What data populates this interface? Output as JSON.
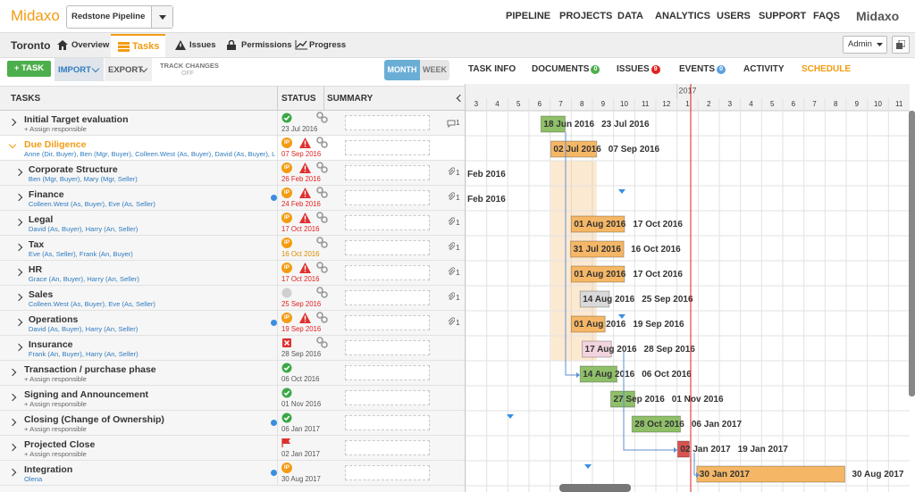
{
  "header": {
    "logo": "Midaxo",
    "pipeline": "Redstone Pipeline",
    "nav": [
      "PIPELINE",
      "PROJECTS",
      "DATA",
      "ANALYTICS",
      "USERS",
      "SUPPORT",
      "FAQS"
    ],
    "brand": "Midaxo"
  },
  "subheader": {
    "project": "Toronto",
    "tabs": [
      "Overview",
      "Tasks",
      "Issues",
      "Permissions",
      "Progress"
    ],
    "active_tab": 1,
    "user": "Admin"
  },
  "toolbar": {
    "add": "+ TASK",
    "import": "IMPORT",
    "export": "EXPORT",
    "track_changes": "TRACK CHANGES",
    "track_state": "OFF",
    "views": [
      "MONTH",
      "WEEK"
    ],
    "active_view": 0,
    "panels": [
      {
        "label": "TASK INFO"
      },
      {
        "label": "DOCUMENTS",
        "count": 0,
        "color": "#4cae4c"
      },
      {
        "label": "ISSUES",
        "count": 9,
        "color": "#e02020"
      },
      {
        "label": "EVENTS",
        "count": 0,
        "color": "#5aa0e0"
      },
      {
        "label": "ACTIVITY"
      },
      {
        "label": "SCHEDULE"
      }
    ],
    "active_panel": 5
  },
  "table": {
    "columns": [
      "TASKS",
      "STATUS",
      "SUMMARY"
    ]
  },
  "timeline": {
    "year": "2017",
    "months": [
      3,
      4,
      5,
      6,
      7,
      8,
      9,
      10,
      11,
      12,
      1,
      2,
      3,
      4,
      5,
      6,
      7,
      8,
      9,
      10,
      11
    ]
  },
  "tasks": [
    {
      "name": "Initial Target evaluation",
      "people": "+ Assign responsible",
      "people_color": "#666666",
      "level": 0,
      "icon": "check",
      "date": "23 Jul 2016",
      "date_color": "#555555",
      "linked": true,
      "count": 1,
      "count_icon": "comment",
      "start": "18 Jun 2016",
      "end": "23 Jul 2016",
      "bar_color": "#8fc069"
    },
    {
      "name": "Due Diligence",
      "name_color": "#f39c12",
      "expanded": true,
      "people": "Anne (Dir, Buyer), Ben (Mgr, Buyer), Colleen.West (As, Buyer), David (As, Buyer), Li",
      "people_color": "#2f7bbf",
      "level": 0,
      "icon": "ip",
      "status": "IP",
      "warning": true,
      "date": "07 Sep 2016",
      "date_color": "#e02020",
      "linked": true,
      "start": "02 Jul 2016",
      "end": "07 Sep 2016",
      "bar_color": "#f5b766",
      "shade": true
    },
    {
      "name": "Corporate Structure",
      "people": "Ben (Mgr, Buyer), Mary (Mgr, Seller)",
      "people_color": "#2f7bbf",
      "level": 1,
      "icon": "ip",
      "status": "IP",
      "warning": true,
      "date": "26 Feb 2016",
      "date_color": "#e02020",
      "linked": true,
      "count": 1,
      "count_icon": "clip",
      "end": "Feb 2016"
    },
    {
      "name": "Finance",
      "people": "Colleen.West (As, Buyer), Eve (As, Seller)",
      "people_color": "#2f7bbf",
      "level": 1,
      "dot": true,
      "icon": "ip",
      "status": "IP",
      "warning": true,
      "date": "24 Feb 2016",
      "date_color": "#e02020",
      "linked": true,
      "count": 1,
      "count_icon": "clip",
      "end": "Feb 2016"
    },
    {
      "name": "Legal",
      "people": "David (As, Buyer), Harry (An, Seller)",
      "people_color": "#2f7bbf",
      "level": 1,
      "icon": "ip",
      "status": "IP",
      "warning": true,
      "date": "17 Oct 2016",
      "date_color": "#e02020",
      "linked": true,
      "count": 1,
      "count_icon": "clip",
      "start": "01 Aug 2016",
      "end": "17 Oct 2016",
      "bar_color": "#f5b766"
    },
    {
      "name": "Tax",
      "people": "Eve (As, Seller), Frank (An, Buyer)",
      "people_color": "#2f7bbf",
      "level": 1,
      "icon": "ip",
      "status": "IP",
      "date": "16 Oct 2016",
      "date_color": "#e08a00",
      "linked": true,
      "count": 1,
      "count_icon": "clip",
      "start": "31 Jul 2016",
      "end": "16 Oct 2016",
      "bar_color": "#f5b766"
    },
    {
      "name": "HR",
      "people": "Grace (An, Buyer), Harry (An, Seller)",
      "people_color": "#2f7bbf",
      "level": 1,
      "icon": "ip",
      "status": "IP",
      "warning": true,
      "date": "17 Oct 2016",
      "date_color": "#e02020",
      "linked": true,
      "count": 1,
      "count_icon": "clip",
      "start": "01 Aug 2016",
      "end": "17 Oct 2016",
      "bar_color": "#f5b766"
    },
    {
      "name": "Sales",
      "people": "Colleen.West (As, Buyer), Eve (As, Seller)",
      "people_color": "#2f7bbf",
      "level": 1,
      "icon": "circle",
      "date": "25 Sep 2016",
      "date_color": "#e02020",
      "linked": true,
      "count": 1,
      "count_icon": "clip",
      "start": "14 Aug 2016",
      "end": "25 Sep 2016",
      "bar_color": "#d9d9d9"
    },
    {
      "name": "Operations",
      "people": "David (As, Buyer), Harry (An, Seller)",
      "people_color": "#2f7bbf",
      "level": 1,
      "dot": true,
      "icon": "ip",
      "status": "IP",
      "warning": true,
      "date": "19 Sep 2016",
      "date_color": "#e02020",
      "linked": true,
      "count": 1,
      "count_icon": "clip",
      "start": "01 Aug 2016",
      "end": "19 Sep 2016",
      "bar_color": "#f5b766"
    },
    {
      "name": "Insurance",
      "people": "Frank (An, Buyer), Harry (An, Seller)",
      "people_color": "#2f7bbf",
      "level": 1,
      "icon": "x",
      "date": "28 Sep 2016",
      "date_color": "#555555",
      "linked": true,
      "start": "17 Aug 2016",
      "end": "28 Sep 2016",
      "bar_color": "#f2d4de"
    },
    {
      "name": "Transaction / purchase phase",
      "people": "+ Assign responsible",
      "people_color": "#666666",
      "level": 0,
      "icon": "check",
      "date": "06 Oct 2016",
      "date_color": "#555555",
      "start": "14 Aug 2016",
      "end": "06 Oct 2016",
      "bar_color": "#8fc069"
    },
    {
      "name": "Signing and Announcement",
      "people": "+ Assign responsible",
      "people_color": "#666666",
      "level": 0,
      "icon": "check",
      "date": "01 Nov 2016",
      "date_color": "#555555",
      "start": "27 Sep 2016",
      "end": "01 Nov 2016",
      "bar_color": "#8fc069"
    },
    {
      "name": "Closing (Change of Ownership)",
      "people": "+ Assign responsible",
      "people_color": "#666666",
      "level": 0,
      "dot": true,
      "icon": "check",
      "date": "06 Jan 2017",
      "date_color": "#555555",
      "start": "28 Oct 2016",
      "end": "06 Jan 2017",
      "bar_color": "#8fc069"
    },
    {
      "name": "Projected Close",
      "people": "+ Assign responsible",
      "people_color": "#666666",
      "level": 0,
      "icon": "flag",
      "date": "02 Jan 2017",
      "date_color": "#555555",
      "start": "02 Jan 2017",
      "end": "19 Jan 2017",
      "bar_color": "#d9534f"
    },
    {
      "name": "Integration",
      "people": "Olena",
      "people_color": "#2f7bbf",
      "level": 0,
      "dot": true,
      "icon": "ip",
      "status": "IP",
      "date": "30 Aug 2017",
      "date_color": "#555555",
      "start": "30 Jan 2017",
      "end": "30 Aug 2017",
      "bar_color": "#f5b766"
    }
  ]
}
